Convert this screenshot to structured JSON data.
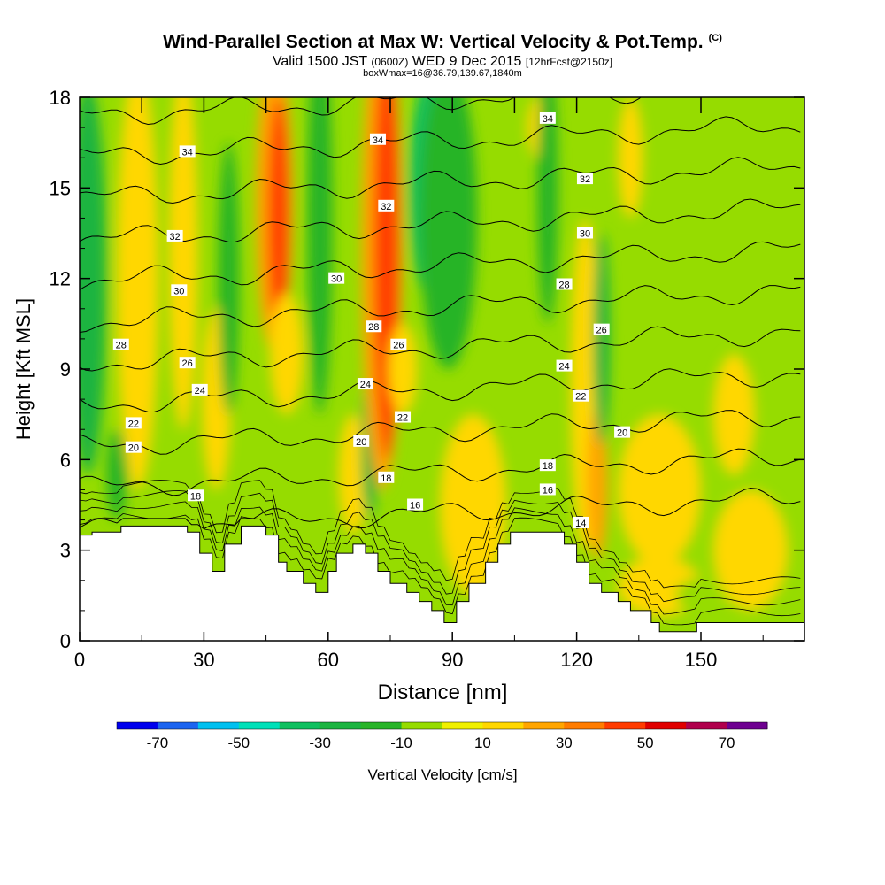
{
  "title": {
    "main": "Wind-Parallel Section at Max W: Vertical Velocity & Pot.Temp.",
    "copyright": "(C)",
    "valid_prefix": "Valid 1500 JST",
    "valid_utc": "(0600Z)",
    "valid_date": "WED 9 Dec 2015",
    "forecast": "[12hrFcst@2150z]",
    "box_info": "boxWmax=16@36.79,139.67,1840m"
  },
  "chart_data": {
    "type": "heatmap",
    "xlabel": "Distance [nm]",
    "ylabel": "Height [Kft MSL]",
    "xlim": [
      0,
      175
    ],
    "ylim": [
      0,
      18
    ],
    "x_ticks": [
      0,
      30,
      60,
      90,
      120,
      150
    ],
    "x_tick_labels": [
      "0",
      "30",
      "60",
      "90",
      "120",
      "150"
    ],
    "y_ticks": [
      0,
      3,
      6,
      9,
      12,
      15,
      18
    ],
    "y_tick_labels": [
      "0",
      "3",
      "6",
      "9",
      "12",
      "15",
      "18"
    ],
    "colorbar": {
      "label": "Vertical Velocity [cm/s]",
      "tick_labels": [
        "-70",
        "-50",
        "-30",
        "-10",
        "10",
        "30",
        "50",
        "70"
      ],
      "tick_values": [
        -70,
        -50,
        -30,
        -10,
        10,
        30,
        50,
        70
      ],
      "bin_edges": [
        -80,
        -70,
        -60,
        -50,
        -40,
        -30,
        -20,
        -10,
        0,
        10,
        20,
        30,
        40,
        50,
        60,
        70,
        80
      ],
      "colors": [
        "#0000ee",
        "#1c64f0",
        "#00c0f0",
        "#00e0b8",
        "#10c060",
        "#1cb440",
        "#28b428",
        "#96dc00",
        "#f0f000",
        "#ffd700",
        "#ffa500",
        "#ff7c00",
        "#ff3c00",
        "#e00000",
        "#b0004c",
        "#6e0090"
      ]
    },
    "terrain_kft": [
      [
        0,
        3.5
      ],
      [
        3,
        3.5
      ],
      [
        3,
        3.6
      ],
      [
        10,
        3.6
      ],
      [
        10,
        3.8
      ],
      [
        26,
        3.8
      ],
      [
        26,
        3.6
      ],
      [
        29,
        3.6
      ],
      [
        29,
        2.9
      ],
      [
        32,
        2.9
      ],
      [
        32,
        2.3
      ],
      [
        35,
        2.3
      ],
      [
        35,
        3.2
      ],
      [
        39,
        3.2
      ],
      [
        39,
        3.8
      ],
      [
        45,
        3.8
      ],
      [
        45,
        3.5
      ],
      [
        48,
        3.5
      ],
      [
        48,
        2.6
      ],
      [
        50,
        2.6
      ],
      [
        50,
        2.3
      ],
      [
        54,
        2.3
      ],
      [
        54,
        1.9
      ],
      [
        57,
        1.9
      ],
      [
        57,
        1.6
      ],
      [
        60,
        1.6
      ],
      [
        60,
        2.3
      ],
      [
        62,
        2.3
      ],
      [
        62,
        2.9
      ],
      [
        66,
        2.9
      ],
      [
        66,
        3.2
      ],
      [
        69,
        3.2
      ],
      [
        69,
        2.9
      ],
      [
        72,
        2.9
      ],
      [
        72,
        2.3
      ],
      [
        75,
        2.3
      ],
      [
        75,
        1.9
      ],
      [
        79,
        1.9
      ],
      [
        79,
        1.6
      ],
      [
        82,
        1.6
      ],
      [
        82,
        1.3
      ],
      [
        85,
        1.3
      ],
      [
        85,
        1.0
      ],
      [
        88,
        1.0
      ],
      [
        88,
        0.6
      ],
      [
        91,
        0.6
      ],
      [
        91,
        1.3
      ],
      [
        94,
        1.3
      ],
      [
        94,
        1.9
      ],
      [
        98,
        1.9
      ],
      [
        98,
        2.6
      ],
      [
        101,
        2.6
      ],
      [
        101,
        3.2
      ],
      [
        104,
        3.2
      ],
      [
        104,
        3.6
      ],
      [
        117,
        3.6
      ],
      [
        117,
        3.2
      ],
      [
        120,
        3.2
      ],
      [
        120,
        2.6
      ],
      [
        123,
        2.6
      ],
      [
        123,
        1.9
      ],
      [
        126,
        1.9
      ],
      [
        126,
        1.6
      ],
      [
        130,
        1.6
      ],
      [
        130,
        1.3
      ],
      [
        133,
        1.3
      ],
      [
        133,
        1.0
      ],
      [
        138,
        1.0
      ],
      [
        138,
        0.6
      ],
      [
        140,
        0.6
      ],
      [
        140,
        0.3
      ],
      [
        149,
        0.3
      ],
      [
        149,
        0.6
      ],
      [
        175,
        0.6
      ]
    ],
    "wind_tick_x_nm": [
      15,
      30,
      45,
      60,
      75,
      90,
      105,
      120,
      150
    ],
    "velocity_features": [
      {
        "x": 2,
        "y": 12,
        "w": 9,
        "h": 13,
        "value": -25
      },
      {
        "x": 9,
        "y": 5.5,
        "w": 5,
        "h": 3,
        "value": -15
      },
      {
        "x": 14,
        "y": 12,
        "w": 10,
        "h": 14,
        "value": 15
      },
      {
        "x": 25,
        "y": 13,
        "w": 7,
        "h": 12,
        "value": 12
      },
      {
        "x": 33,
        "y": 8,
        "w": 7,
        "h": 6,
        "value": 12
      },
      {
        "x": 36,
        "y": 12,
        "w": 5,
        "h": 9,
        "value": -15
      },
      {
        "x": 47,
        "y": 14.5,
        "w": 9,
        "h": 10,
        "value": 25
      },
      {
        "x": 48,
        "y": 14,
        "w": 5,
        "h": 8,
        "value": 40
      },
      {
        "x": 50,
        "y": 9.5,
        "w": 8,
        "h": 4,
        "value": 12
      },
      {
        "x": 58,
        "y": 14,
        "w": 6,
        "h": 13,
        "value": -20
      },
      {
        "x": 66,
        "y": 5.5,
        "w": 7,
        "h": 4,
        "value": 12
      },
      {
        "x": 70,
        "y": 6.5,
        "w": 4,
        "h": 5,
        "value": -25
      },
      {
        "x": 73,
        "y": 13,
        "w": 10,
        "h": 16,
        "value": 25
      },
      {
        "x": 74,
        "y": 13,
        "w": 6,
        "h": 14,
        "value": 45
      },
      {
        "x": 78,
        "y": 9,
        "w": 7,
        "h": 3,
        "value": 12
      },
      {
        "x": 84,
        "y": 15,
        "w": 9,
        "h": 7,
        "value": -35
      },
      {
        "x": 89,
        "y": 14,
        "w": 14,
        "h": 10,
        "value": -15
      },
      {
        "x": 95,
        "y": 4.5,
        "w": 16,
        "h": 6,
        "value": 12
      },
      {
        "x": 111,
        "y": 17,
        "w": 6,
        "h": 2,
        "value": 12
      },
      {
        "x": 113,
        "y": 15,
        "w": 5,
        "h": 9,
        "value": -15
      },
      {
        "x": 122,
        "y": 8.5,
        "w": 7,
        "h": 11,
        "value": 15
      },
      {
        "x": 125,
        "y": 5.2,
        "w": 5,
        "h": 5,
        "value": 22
      },
      {
        "x": 126,
        "y": 10,
        "w": 4,
        "h": 7,
        "value": -25
      },
      {
        "x": 133,
        "y": 16,
        "w": 6,
        "h": 4,
        "value": 12
      },
      {
        "x": 140,
        "y": 5,
        "w": 20,
        "h": 5,
        "value": 12
      },
      {
        "x": 158,
        "y": 7.5,
        "w": 10,
        "h": 4,
        "value": 12
      },
      {
        "x": 162,
        "y": 3,
        "w": 18,
        "h": 4,
        "value": 12
      },
      {
        "x": 140,
        "y": 1.8,
        "w": 20,
        "h": 2,
        "value": 12
      },
      {
        "x": 150,
        "y": 1.5,
        "w": 12,
        "h": 1.2,
        "value": -5
      }
    ],
    "contour_levels_K": [
      14,
      16,
      18,
      20,
      22,
      24,
      26,
      28,
      30,
      32,
      34
    ],
    "contour_labels": [
      {
        "text": "34",
        "x": 26,
        "y": 16.2
      },
      {
        "text": "34",
        "x": 72,
        "y": 16.6
      },
      {
        "text": "34",
        "x": 113,
        "y": 17.3
      },
      {
        "text": "32",
        "x": 23,
        "y": 13.4
      },
      {
        "text": "32",
        "x": 74,
        "y": 14.4
      },
      {
        "text": "32",
        "x": 122,
        "y": 15.3
      },
      {
        "text": "30",
        "x": 24,
        "y": 11.6
      },
      {
        "text": "30",
        "x": 62,
        "y": 12.0
      },
      {
        "text": "30",
        "x": 122,
        "y": 13.5
      },
      {
        "text": "28",
        "x": 10,
        "y": 9.8
      },
      {
        "text": "28",
        "x": 71,
        "y": 10.4
      },
      {
        "text": "28",
        "x": 117,
        "y": 11.8
      },
      {
        "text": "26",
        "x": 26,
        "y": 9.2
      },
      {
        "text": "26",
        "x": 77,
        "y": 9.8
      },
      {
        "text": "26",
        "x": 126,
        "y": 10.3
      },
      {
        "text": "24",
        "x": 29,
        "y": 8.3
      },
      {
        "text": "24",
        "x": 69,
        "y": 8.5
      },
      {
        "text": "24",
        "x": 117,
        "y": 9.1
      },
      {
        "text": "22",
        "x": 13,
        "y": 7.2
      },
      {
        "text": "22",
        "x": 78,
        "y": 7.4
      },
      {
        "text": "22",
        "x": 121,
        "y": 8.1
      },
      {
        "text": "20",
        "x": 13,
        "y": 6.4
      },
      {
        "text": "20",
        "x": 68,
        "y": 6.6
      },
      {
        "text": "20",
        "x": 131,
        "y": 6.9
      },
      {
        "text": "18",
        "x": 28,
        "y": 4.8
      },
      {
        "text": "18",
        "x": 113,
        "y": 5.8
      },
      {
        "text": "18",
        "x": 74,
        "y": 5.4
      },
      {
        "text": "16",
        "x": 81,
        "y": 4.5
      },
      {
        "text": "16",
        "x": 113,
        "y": 5.0
      },
      {
        "text": "14",
        "x": 121,
        "y": 3.9
      }
    ]
  }
}
